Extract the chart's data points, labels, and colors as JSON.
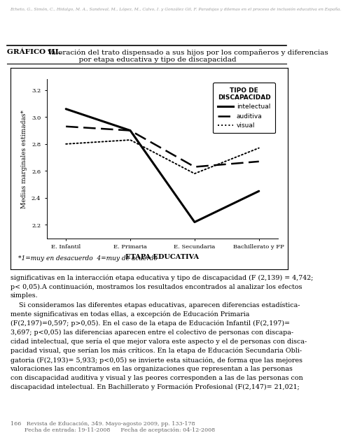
{
  "header_small": "Echeto, G., Simón, C., Hidalgo, M. A., Sandoval, M., López, M., Calvo, I. y González Gil, F. Paradojas y dilemas en el proceso de inclusión educativa en España.",
  "title_bold": "GRÁFICO III.",
  "title_normal": "  Valoración del trato dispensado a sus hijos por los compañeros y diferencias\n              por etapa educativa y tipo de discapacidad",
  "xlabel": "ETAPA EDUCATIVA",
  "ylabel": "Medias marginales estimadas*",
  "footnote": "*1=muy en desacuerdo  4=muy de acuerdo",
  "legend_title": "TIPO DE\nDISCAPACIDAD",
  "legend_labels": [
    "intelectual",
    "auditiva",
    "visual"
  ],
  "x_labels": [
    "E. Infantil",
    "E. Primaria",
    "E. Secundaria",
    "Bachillerato y FP"
  ],
  "intelectual": [
    3.06,
    2.9,
    2.22,
    2.45
  ],
  "auditiva": [
    2.93,
    2.9,
    2.63,
    2.67
  ],
  "visual": [
    2.8,
    2.83,
    2.58,
    2.77
  ],
  "ylim": [
    2.1,
    3.28
  ],
  "yticks": [
    2.2,
    2.4,
    2.6,
    2.8,
    3.0,
    3.2
  ],
  "body_text": "significativas en la interacción etapa educativa y tipo de discapacidad (F (2,139) = 4,742;\np< 0,05).A continuación, mostramos los resultados encontrados al analizar los efectos\nsimples.\n    Si consideramos las diferentes etapas educativas, aparecen diferencias estadística-\nmente significativas en todas ellas, a excepción de Educación Primaria\n(F(2,197)=0,597; p>0,05). En el caso de la etapa de Educación Infantil (F(2,197)=\n3,697; p<0,05) las diferencias aparecen entre el colectivo de personas con discapa-\ncidad intelectual, que sería el que mejor valora este aspecto y el de personas con disca-\npacidad visual, que serían los más críticos. En la etapa de Educación Secundaria Obli-\ngatoria (F(2,193)= 5,933; p<0,05) se invierte esta situación, de forma que las mejores\nvaloraciones las encontramos en las organizaciones que representan a las personas\ncon discapacidad auditiva y visual y las peores corresponden a las de las personas con\ndiscapacidad intelectual. En Bachillerato y Formación Profesional (F(2,147)= 21,021;",
  "footer_line1": "166   Revista de Educación, 349. Mayo-agosto 2009, pp. 133-178",
  "footer_line2": "        Fecha de entrada: 19-11-2008      Fecha de aceptación: 04-12-2008"
}
